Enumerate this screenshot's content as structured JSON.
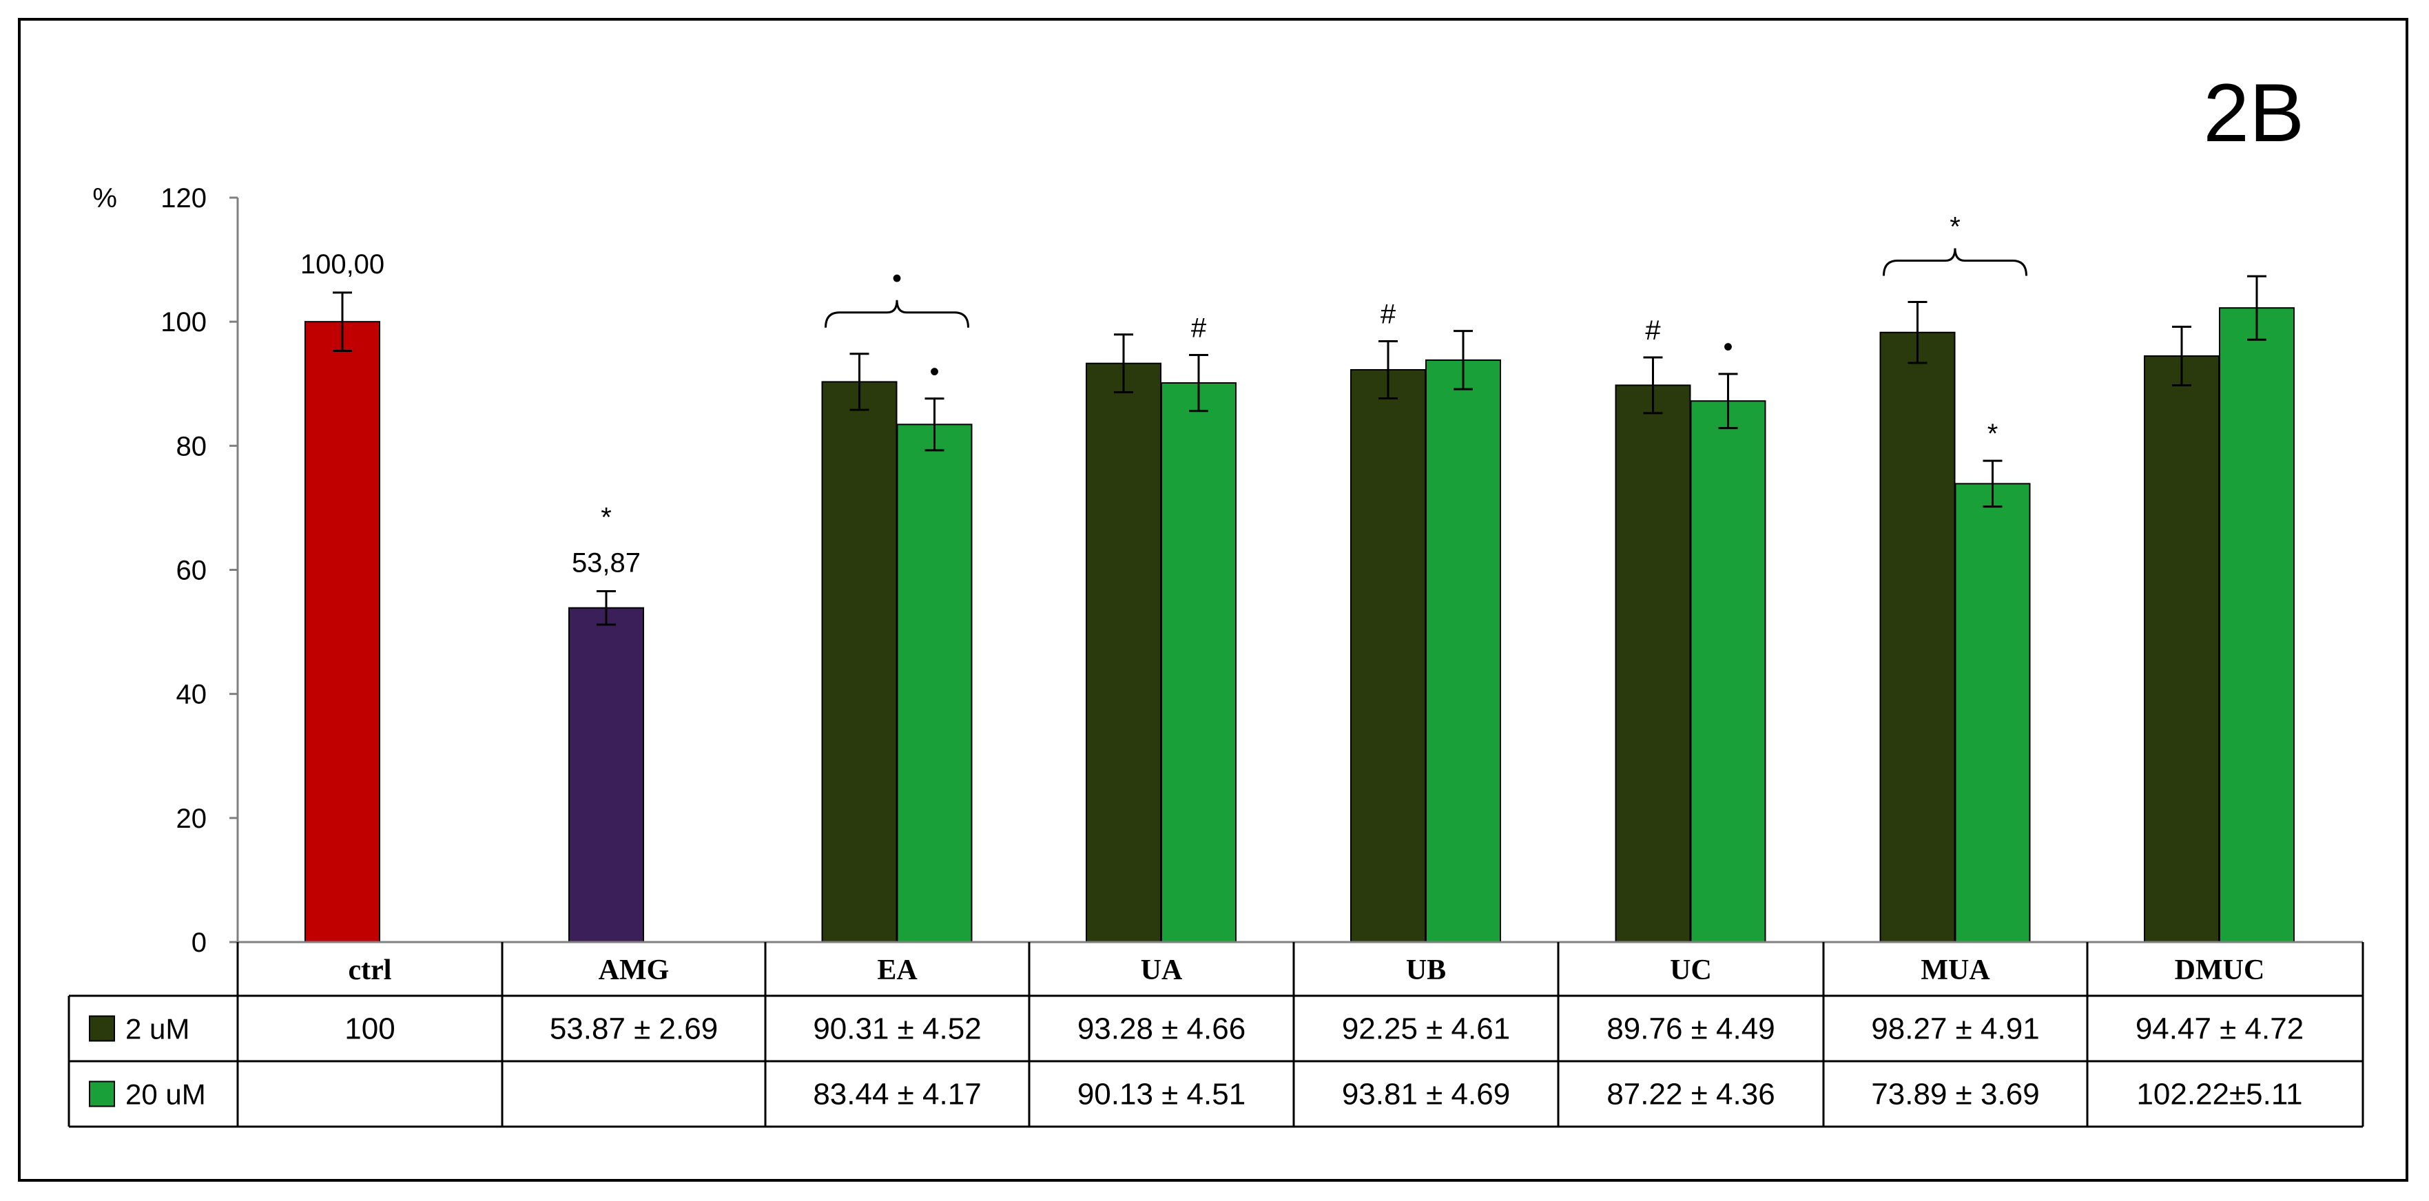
{
  "chart_data": {
    "type": "bar",
    "panel_label": "2B",
    "ylabel": "%",
    "ylim": [
      0,
      120
    ],
    "yticks": [
      "0",
      "20",
      "40",
      "60",
      "80",
      "100",
      "120"
    ],
    "categories": [
      "ctrl",
      "AMG",
      "EA",
      "UA",
      "UB",
      "UC",
      "MUA",
      "DMUC"
    ],
    "series": [
      {
        "name": "2 uM",
        "color": "#2b3a0c",
        "values": [
          null,
          null,
          90.31,
          93.28,
          92.25,
          89.76,
          98.27,
          94.47
        ],
        "errors": [
          null,
          null,
          4.52,
          4.66,
          4.61,
          4.49,
          4.91,
          4.72
        ],
        "row_text": [
          "100",
          "53.87 ± 2.69",
          "90.31 ± 4.52",
          "93.28 ± 4.66",
          "92.25 ± 4.61",
          "89.76 ± 4.49",
          "98.27 ± 4.91",
          "94.47 ± 4.72"
        ]
      },
      {
        "name": "20 uM",
        "color": "#1aa038",
        "values": [
          null,
          null,
          83.44,
          90.13,
          93.81,
          87.22,
          73.89,
          102.22
        ],
        "errors": [
          null,
          null,
          4.17,
          4.51,
          4.69,
          4.36,
          3.69,
          5.11
        ],
        "row_text": [
          "",
          "",
          "83.44 ± 4.17",
          "90.13 ± 4.51",
          "93.81 ± 4.69",
          "87.22 ± 4.36",
          "73.89 ± 3.69",
          "102.22±5.11"
        ]
      }
    ],
    "single_bars": [
      {
        "category": "ctrl",
        "value": 100,
        "error": 4.7,
        "color": "#c00000",
        "label": "100,00"
      },
      {
        "category": "AMG",
        "value": 53.87,
        "error": 2.69,
        "color": "#3b1f58",
        "label": "53,87",
        "mark": "*"
      }
    ],
    "annotations": [
      {
        "category": "EA",
        "series": "20 uM",
        "mark": "•"
      },
      {
        "category": "UA",
        "series": "20 uM",
        "mark": "#"
      },
      {
        "category": "UB",
        "series": "2 uM",
        "mark": "#"
      },
      {
        "category": "UC",
        "series": "2 uM",
        "mark": "#"
      },
      {
        "category": "UC",
        "series": "20 uM",
        "mark": "•"
      },
      {
        "category": "MUA",
        "series": "20 uM",
        "mark": "*"
      }
    ],
    "brackets": [
      {
        "category": "EA",
        "mark": "•"
      },
      {
        "category": "MUA",
        "mark": "*"
      }
    ]
  }
}
